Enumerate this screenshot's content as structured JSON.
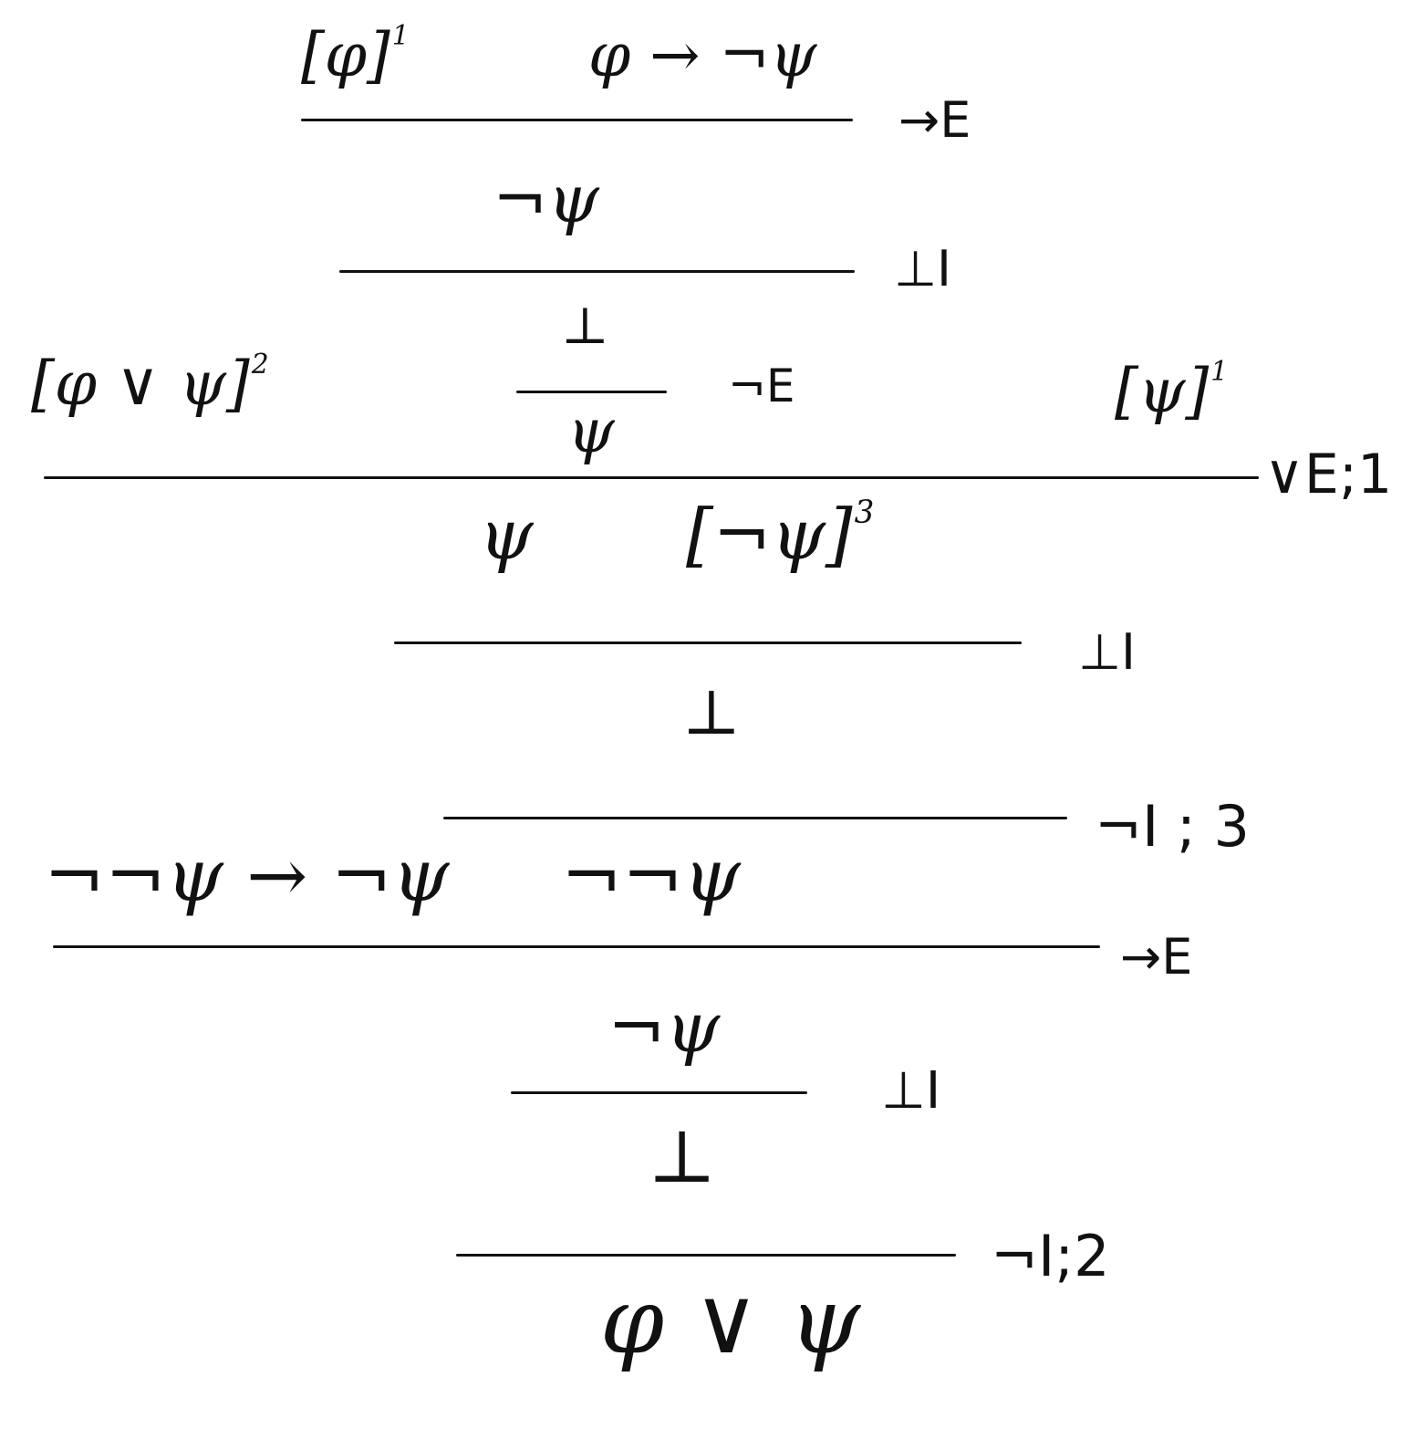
{
  "diagram": {
    "kind": "natural deduction proof tree",
    "ink_color": "#111111",
    "background": "#ffffff",
    "formulas": {
      "assume_phi_1": "[φ]",
      "assume_phi_1_label": "1",
      "premise_phi_imp_not_psi": "φ → ¬ψ",
      "not_psi_top": "¬ψ",
      "bottom_1": "⊥",
      "assume_phi_or_psi": "[φ ∨ ψ]",
      "assume_phi_or_psi_label": "2",
      "psi_from_bottom": "ψ",
      "assume_psi_1": "[ψ]",
      "assume_psi_1_label": "1",
      "psi_mid": "ψ",
      "assume_not_psi_3": "[¬ψ]",
      "assume_not_psi_3_label": "3",
      "bottom_2": "⊥",
      "premise_nn_psi_imp_not_psi": "¬¬ψ → ¬ψ",
      "not_not_psi": "¬¬ψ",
      "not_psi_lower": "¬ψ",
      "bottom_3": "⊥",
      "conclusion": "φ ∨ ψ"
    },
    "rules": {
      "rule_1": "→E",
      "rule_2": "⊥I",
      "rule_3": "¬E",
      "rule_4": "∨E;1",
      "rule_5": "⊥I",
      "rule_6": "¬I ; 3",
      "rule_7": "→E",
      "rule_8": "⊥I",
      "rule_9": "¬I;2"
    }
  }
}
